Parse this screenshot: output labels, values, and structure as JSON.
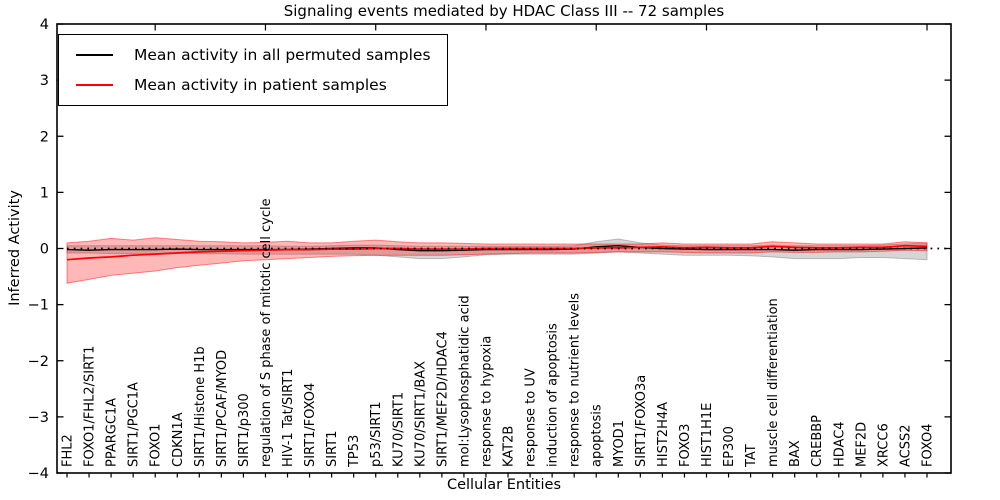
{
  "chart_data": {
    "type": "line",
    "title": "Signaling events mediated by HDAC Class III -- 72 samples",
    "xlabel": "Cellular Entities",
    "ylabel": "Inferred Activity",
    "ylim": [
      -4,
      4
    ],
    "ytick_values": [
      4,
      3,
      2,
      1,
      0,
      -1,
      -2,
      -3,
      -4
    ],
    "ytick_labels": [
      "4",
      "3",
      "2",
      "1",
      "0",
      "−1",
      "−2",
      "−3",
      "−4"
    ],
    "grid": false,
    "legend": {
      "position": "upper left",
      "entries": [
        {
          "label": "Mean activity in all permuted samples",
          "color": "#000000"
        },
        {
          "label": "Mean activity in patient samples",
          "color": "#ff0000"
        }
      ]
    },
    "categories": [
      "FHL2",
      "FOXO1/FHL2/SIRT1",
      "PPARGC1A",
      "SIRT1/PGC1A",
      "FOXO1",
      "CDKN1A",
      "SIRT1/Histone H1b",
      "SIRT1/PCAF/MYOD",
      "SIRT1/p300",
      "regulation of S phase of mitotic cell cycle",
      "HIV-1 Tat/SIRT1",
      "SIRT1/FOXO4",
      "SIRT1",
      "TP53",
      "p53/SIRT1",
      "KU70/SIRT1",
      "KU70/SIRT1/BAX",
      "SIRT1/MEF2D/HDAC4",
      "mol:Lysophosphatidic acid",
      "response to hypoxia",
      "KAT2B",
      "response to UV",
      "induction of apoptosis",
      "response to nutrient levels",
      "apoptosis",
      "MYOD1",
      "SIRT1/FOXO3a",
      "HIST2H4A",
      "FOXO3",
      "HIST1H1E",
      "EP300",
      "TAT",
      "muscle cell differentiation",
      "BAX",
      "CREBBP",
      "HDAC4",
      "MEF2D",
      "XRCC6",
      "ACSS2",
      "FOXO4"
    ],
    "series": [
      {
        "name": "Mean activity in all permuted samples",
        "color": "#000000",
        "band_fill": "rgba(128,128,128,0.32)",
        "band_edge": "rgba(120,120,120,0.45)",
        "values": [
          -0.02,
          -0.03,
          -0.02,
          -0.02,
          -0.02,
          -0.01,
          -0.02,
          -0.02,
          -0.02,
          -0.02,
          -0.02,
          -0.01,
          0.0,
          0.01,
          0.01,
          -0.02,
          -0.04,
          -0.04,
          -0.03,
          -0.02,
          -0.02,
          -0.02,
          -0.02,
          -0.01,
          0.03,
          0.05,
          0.02,
          0.0,
          -0.01,
          -0.02,
          -0.02,
          -0.02,
          -0.02,
          -0.03,
          -0.02,
          -0.02,
          -0.02,
          -0.01,
          0.0,
          0.01
        ],
        "band_upper": [
          0.05,
          0.05,
          0.05,
          0.05,
          0.05,
          0.05,
          0.05,
          0.05,
          0.05,
          0.05,
          0.04,
          0.04,
          0.05,
          0.06,
          0.06,
          0.05,
          0.04,
          0.04,
          0.04,
          0.04,
          0.04,
          0.04,
          0.04,
          0.05,
          0.12,
          0.17,
          0.1,
          0.06,
          0.05,
          0.05,
          0.05,
          0.05,
          0.06,
          0.05,
          0.05,
          0.05,
          0.05,
          0.06,
          0.08,
          0.1
        ],
        "band_lower": [
          -0.08,
          -0.08,
          -0.09,
          -0.09,
          -0.09,
          -0.08,
          -0.09,
          -0.09,
          -0.1,
          -0.1,
          -0.1,
          -0.1,
          -0.1,
          -0.1,
          -0.12,
          -0.15,
          -0.18,
          -0.18,
          -0.15,
          -0.11,
          -0.1,
          -0.1,
          -0.1,
          -0.1,
          -0.08,
          -0.06,
          -0.08,
          -0.1,
          -0.12,
          -0.12,
          -0.12,
          -0.13,
          -0.15,
          -0.18,
          -0.18,
          -0.18,
          -0.16,
          -0.16,
          -0.18,
          -0.2
        ]
      },
      {
        "name": "Mean activity in patient samples",
        "color": "#ff0000",
        "band_fill": "rgba(255,0,0,0.28)",
        "band_edge": "rgba(255,0,0,0.45)",
        "values": [
          -0.2,
          -0.17,
          -0.15,
          -0.12,
          -0.1,
          -0.08,
          -0.06,
          -0.05,
          -0.04,
          -0.03,
          -0.02,
          -0.02,
          -0.01,
          -0.01,
          0.0,
          0.0,
          -0.01,
          -0.01,
          -0.01,
          0.0,
          0.0,
          0.0,
          0.0,
          0.0,
          0.01,
          0.01,
          0.02,
          0.03,
          0.01,
          0.02,
          0.01,
          0.01,
          0.04,
          0.02,
          0.01,
          0.01,
          0.02,
          0.02,
          0.05,
          0.04
        ],
        "band_upper": [
          0.1,
          0.13,
          0.18,
          0.15,
          0.19,
          0.16,
          0.13,
          0.12,
          0.1,
          0.11,
          0.13,
          0.1,
          0.1,
          0.13,
          0.15,
          0.12,
          0.1,
          0.1,
          0.09,
          0.08,
          0.08,
          0.08,
          0.08,
          0.08,
          0.08,
          0.08,
          0.08,
          0.1,
          0.08,
          0.08,
          0.08,
          0.08,
          0.12,
          0.1,
          0.08,
          0.08,
          0.08,
          0.08,
          0.12,
          0.1
        ],
        "band_lower": [
          -0.62,
          -0.55,
          -0.48,
          -0.44,
          -0.4,
          -0.34,
          -0.3,
          -0.26,
          -0.22,
          -0.2,
          -0.18,
          -0.16,
          -0.14,
          -0.13,
          -0.12,
          -0.12,
          -0.12,
          -0.12,
          -0.11,
          -0.1,
          -0.09,
          -0.08,
          -0.08,
          -0.08,
          -0.07,
          -0.06,
          -0.06,
          -0.06,
          -0.07,
          -0.08,
          -0.08,
          -0.08,
          -0.06,
          -0.07,
          -0.07,
          -0.06,
          -0.06,
          -0.05,
          -0.03,
          -0.04
        ]
      }
    ],
    "zero_line": true
  }
}
